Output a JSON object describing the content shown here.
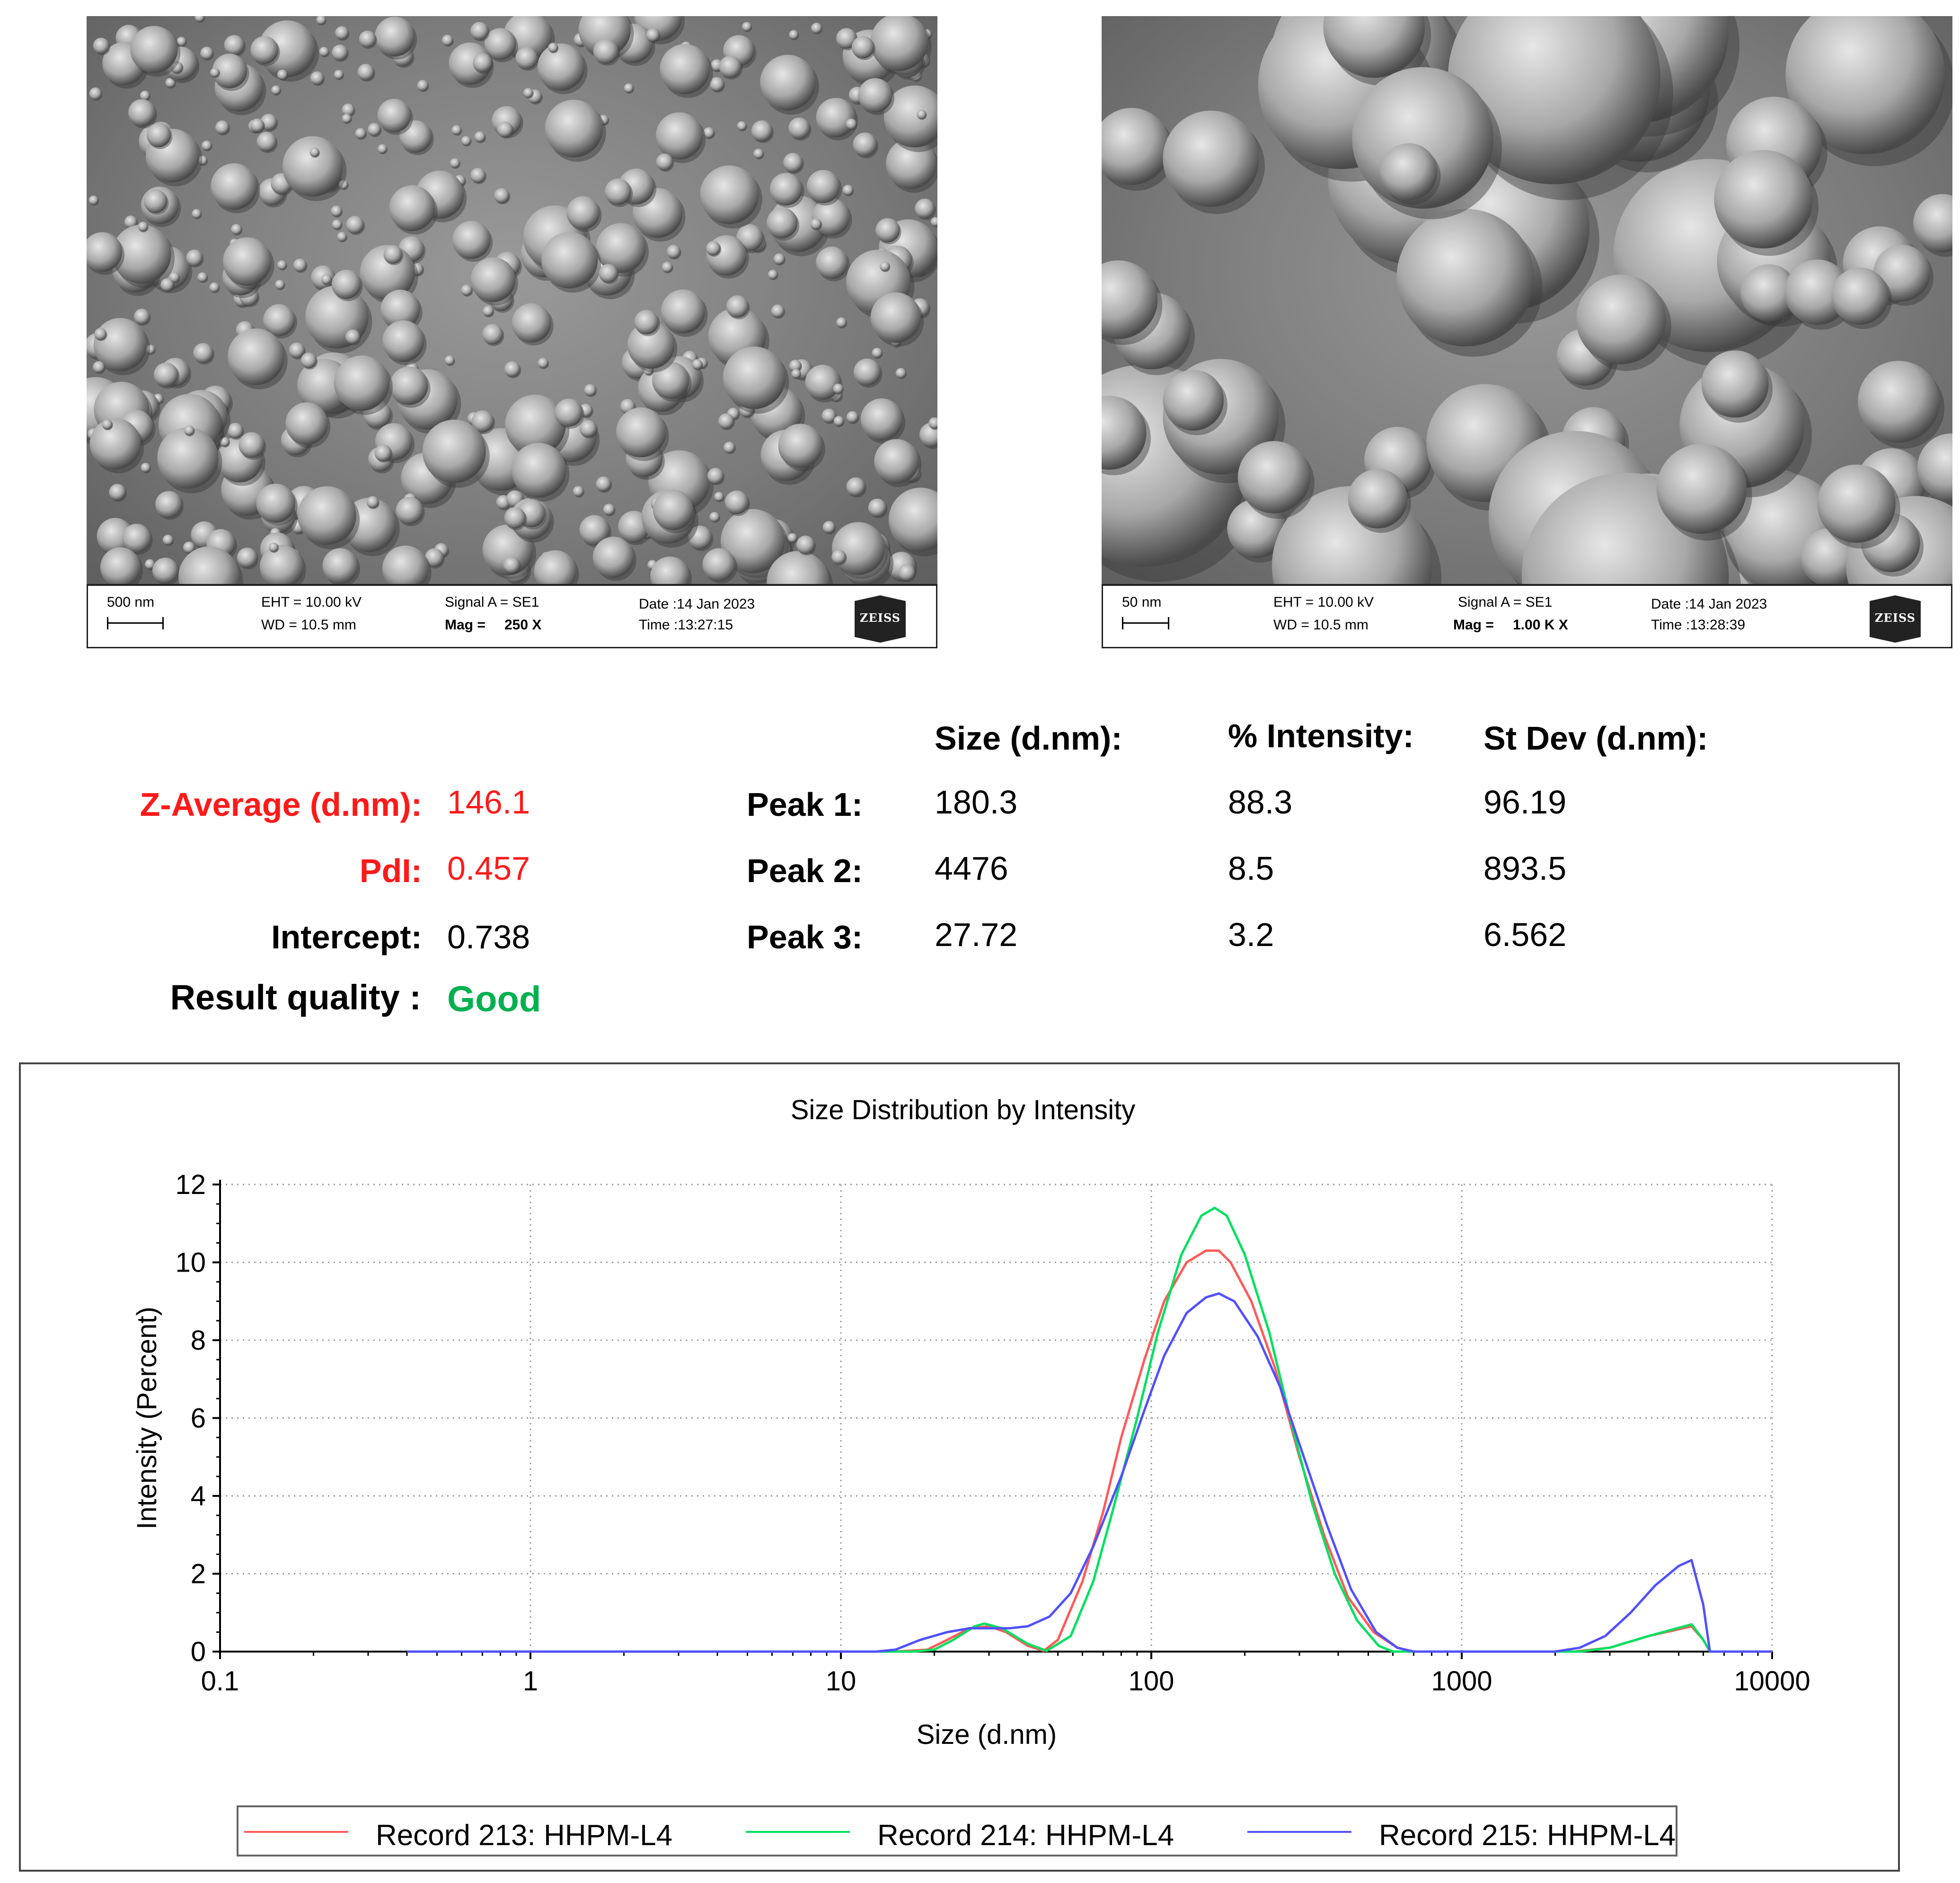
{
  "sem": [
    {
      "scale_label": "500 nm",
      "eht": "EHT = 10.00 kV",
      "wd": "WD = 10.5 mm",
      "signal": "Signal A = SE1",
      "mag_label": "Mag =",
      "mag_value": "250 X",
      "date": "Date :14 Jan 2023",
      "time": "Time :13:27:15",
      "logo_text": "ZEISS"
    },
    {
      "scale_label": "50 nm",
      "eht": "EHT = 10.00 kV",
      "wd": "WD = 10.5 mm",
      "signal": "Signal A = SE1",
      "mag_label": "Mag =",
      "mag_value": "1.00 K X",
      "date": "Date :14 Jan 2023",
      "time": "Time :13:28:39",
      "logo_text": "ZEISS"
    }
  ],
  "results": {
    "z_average_label": "Z-Average (d.nm):",
    "z_average_value": "146.1",
    "pdi_label": "PdI:",
    "pdi_value": "0.457",
    "intercept_label": "Intercept:",
    "intercept_value": "0.738",
    "quality_label": "Result quality :",
    "quality_value": "Good",
    "col_size": "Size (d.nm):",
    "col_intensity": "% Intensity:",
    "col_stdev": "St Dev (d.nm):",
    "peaks": [
      {
        "label": "Peak 1:",
        "size": "180.3",
        "intensity": "88.3",
        "stdev": "96.19"
      },
      {
        "label": "Peak 2:",
        "size": "4476",
        "intensity": "8.5",
        "stdev": "893.5"
      },
      {
        "label": "Peak 3:",
        "size": "27.72",
        "intensity": "3.2",
        "stdev": "6.562"
      }
    ]
  },
  "colors": {
    "red": "#ff1a1a",
    "green": "#00b050"
  },
  "chart_data": {
    "type": "line",
    "title": "Size Distribution by Intensity",
    "xlabel": "Size (d.nm)",
    "ylabel": "Intensity (Percent)",
    "x_scale": "log",
    "xlim": [
      0.1,
      10000
    ],
    "ylim": [
      0,
      12
    ],
    "x_ticks": [
      "0.1",
      "1",
      "10",
      "100",
      "1000",
      "10000"
    ],
    "y_ticks": [
      "0",
      "2",
      "4",
      "6",
      "8",
      "10",
      "12"
    ],
    "grid": true,
    "legend": "bottom",
    "series": [
      {
        "name": "Record 213: HHPM-L4",
        "color": "#ff5a5a",
        "points": [
          [
            0.4,
            0
          ],
          [
            15,
            0
          ],
          [
            19,
            0.05
          ],
          [
            22,
            0.3
          ],
          [
            26,
            0.6
          ],
          [
            30,
            0.65
          ],
          [
            34,
            0.5
          ],
          [
            40,
            0.15
          ],
          [
            45,
            0.02
          ],
          [
            50,
            0.3
          ],
          [
            60,
            1.8
          ],
          [
            70,
            3.6
          ],
          [
            80,
            5.5
          ],
          [
            95,
            7.5
          ],
          [
            110,
            9.0
          ],
          [
            130,
            10.0
          ],
          [
            150,
            10.3
          ],
          [
            165,
            10.3
          ],
          [
            180,
            10.0
          ],
          [
            210,
            9.0
          ],
          [
            250,
            7.3
          ],
          [
            300,
            5.0
          ],
          [
            360,
            3.0
          ],
          [
            430,
            1.4
          ],
          [
            520,
            0.5
          ],
          [
            620,
            0.1
          ],
          [
            700,
            0
          ],
          [
            2300,
            0
          ],
          [
            3000,
            0.1
          ],
          [
            4000,
            0.4
          ],
          [
            5500,
            0.65
          ],
          [
            6000,
            0.3
          ],
          [
            6300,
            0
          ],
          [
            10000,
            0
          ]
        ]
      },
      {
        "name": "Record 214: HHPM-L4",
        "color": "#00e060",
        "points": [
          [
            0.4,
            0
          ],
          [
            17,
            0
          ],
          [
            20,
            0.05
          ],
          [
            23,
            0.3
          ],
          [
            27,
            0.65
          ],
          [
            29,
            0.72
          ],
          [
            33,
            0.6
          ],
          [
            40,
            0.2
          ],
          [
            46,
            0.02
          ],
          [
            55,
            0.4
          ],
          [
            65,
            1.8
          ],
          [
            75,
            3.6
          ],
          [
            90,
            6.0
          ],
          [
            105,
            8.2
          ],
          [
            125,
            10.2
          ],
          [
            145,
            11.2
          ],
          [
            160,
            11.4
          ],
          [
            175,
            11.2
          ],
          [
            200,
            10.2
          ],
          [
            240,
            8.2
          ],
          [
            280,
            6.0
          ],
          [
            330,
            3.8
          ],
          [
            390,
            2.0
          ],
          [
            460,
            0.8
          ],
          [
            540,
            0.15
          ],
          [
            600,
            0
          ],
          [
            2400,
            0
          ],
          [
            3000,
            0.1
          ],
          [
            4000,
            0.4
          ],
          [
            5500,
            0.7
          ],
          [
            6000,
            0.3
          ],
          [
            6300,
            0
          ],
          [
            10000,
            0
          ]
        ]
      },
      {
        "name": "Record 215: HHPM-L4",
        "color": "#5050ff",
        "points": [
          [
            0.4,
            0
          ],
          [
            13,
            0
          ],
          [
            15,
            0.05
          ],
          [
            18,
            0.3
          ],
          [
            22,
            0.5
          ],
          [
            26,
            0.6
          ],
          [
            30,
            0.6
          ],
          [
            35,
            0.6
          ],
          [
            40,
            0.65
          ],
          [
            47,
            0.9
          ],
          [
            55,
            1.5
          ],
          [
            65,
            2.7
          ],
          [
            80,
            4.5
          ],
          [
            95,
            6.2
          ],
          [
            110,
            7.6
          ],
          [
            130,
            8.7
          ],
          [
            150,
            9.1
          ],
          [
            165,
            9.2
          ],
          [
            185,
            9.0
          ],
          [
            220,
            8.1
          ],
          [
            260,
            6.8
          ],
          [
            310,
            5.0
          ],
          [
            370,
            3.2
          ],
          [
            440,
            1.6
          ],
          [
            530,
            0.5
          ],
          [
            620,
            0.1
          ],
          [
            700,
            0
          ],
          [
            2000,
            0
          ],
          [
            2400,
            0.1
          ],
          [
            2900,
            0.4
          ],
          [
            3500,
            1.0
          ],
          [
            4200,
            1.7
          ],
          [
            5000,
            2.2
          ],
          [
            5500,
            2.35
          ],
          [
            6000,
            1.2
          ],
          [
            6300,
            0
          ],
          [
            10000,
            0
          ]
        ]
      }
    ]
  }
}
